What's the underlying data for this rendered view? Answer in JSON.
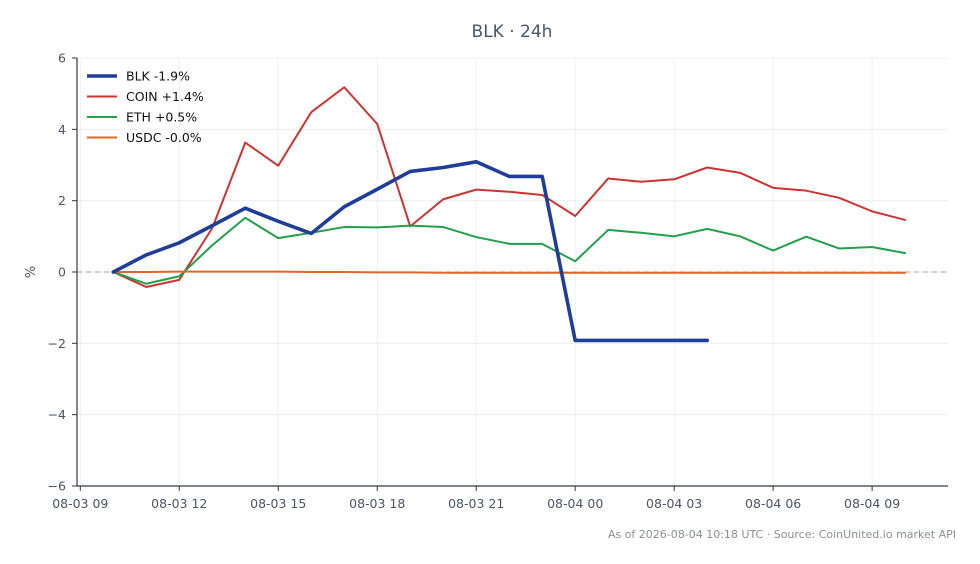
{
  "chart_data": {
    "type": "line",
    "title": "BLK · 24h",
    "xlabel": "",
    "ylabel": "%",
    "ylim": [
      -6,
      6
    ],
    "yticks": [
      -6,
      -4,
      -2,
      0,
      2,
      4,
      6
    ],
    "ytick_labels": [
      "−6",
      "−4",
      "−2",
      "0",
      "2",
      "4",
      "6"
    ],
    "xlim": [
      -0.1,
      26.3
    ],
    "x_hours": [
      1,
      2,
      3,
      4,
      5,
      6,
      7,
      8,
      9,
      10,
      11,
      12,
      13,
      14,
      15,
      16,
      17,
      18,
      19,
      20,
      21,
      22,
      23,
      24,
      25
    ],
    "xticks": [
      0,
      3,
      6,
      9,
      12,
      15,
      18,
      21,
      24
    ],
    "xtick_labels": [
      "08-03 09",
      "08-03 12",
      "08-03 15",
      "08-03 18",
      "08-03 21",
      "08-04 00",
      "08-04 03",
      "08-04 06",
      "08-04 09"
    ],
    "grid": true,
    "zero_line": true,
    "legend_position": "top-left",
    "series": [
      {
        "name": "BLK -1.9%",
        "color": "#1f3d99",
        "emphasis": true,
        "values": [
          0.0,
          0.48,
          0.82,
          1.3,
          1.79,
          1.42,
          1.08,
          1.83,
          2.32,
          2.82,
          2.93,
          3.09,
          2.68,
          2.68,
          -1.92,
          -1.92,
          -1.92,
          -1.92,
          -1.92
        ]
      },
      {
        "name": "COIN +1.4%",
        "color": "#cc3333",
        "values": [
          0.0,
          -0.42,
          -0.22,
          1.23,
          3.63,
          2.98,
          4.48,
          5.18,
          4.15,
          1.28,
          2.04,
          2.31,
          2.25,
          2.16,
          1.57,
          2.62,
          2.53,
          2.6,
          2.93,
          2.78,
          2.36,
          2.28,
          2.08,
          1.7,
          1.46
        ]
      },
      {
        "name": "ETH +0.5%",
        "color": "#22a04b",
        "values": [
          0.0,
          -0.33,
          -0.12,
          0.75,
          1.52,
          0.95,
          1.1,
          1.26,
          1.25,
          1.3,
          1.26,
          0.98,
          0.79,
          0.79,
          0.3,
          1.18,
          1.1,
          1.0,
          1.21,
          1.0,
          0.6,
          0.99,
          0.66,
          0.7,
          0.53
        ]
      },
      {
        "name": "USDC -0.0%",
        "color": "#e0662a",
        "values": [
          0.0,
          0.0,
          0.01,
          0.01,
          0.01,
          0.01,
          0.0,
          0.0,
          -0.01,
          -0.01,
          -0.02,
          -0.02,
          -0.02,
          -0.02,
          -0.02,
          -0.02,
          -0.02,
          -0.02,
          -0.02,
          -0.02,
          -0.02,
          -0.02,
          -0.02,
          -0.02,
          -0.02
        ]
      }
    ]
  },
  "footer": "As of 2026-08-04 10:18 UTC · Source: CoinUnited.io market API"
}
